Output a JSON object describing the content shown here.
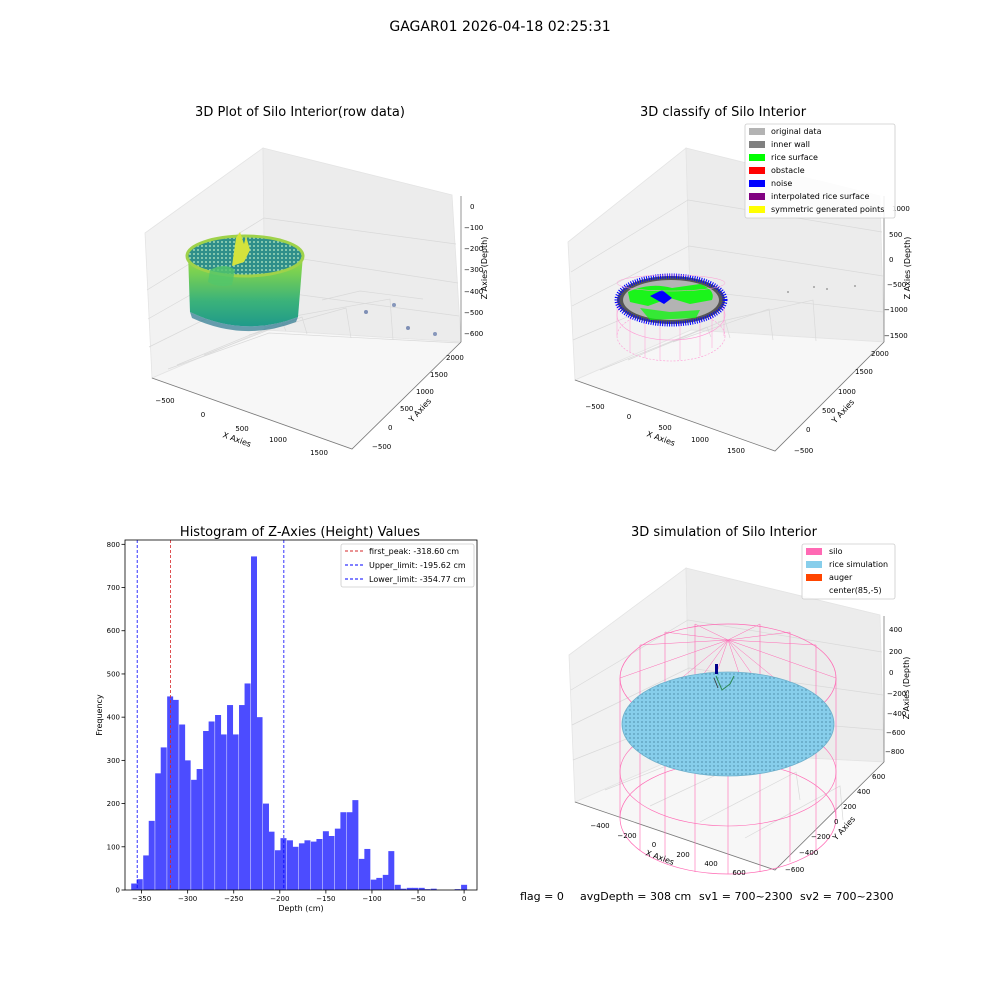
{
  "figure_title": "GAGAR01 2026-04-18 02:25:31",
  "status_line": {
    "flag": "flag = 0",
    "avg_depth": "avgDepth = 308 cm",
    "sv1": "sv1 = 700~2300",
    "sv2": "sv2 = 700~2300"
  },
  "chart_data": [
    {
      "id": "raw3d",
      "type": "scatter",
      "title": "3D Plot of Silo Interior(row data)",
      "xlabel": "X Axies",
      "ylabel": "Y Axies",
      "zlabel": "Z Axies (Depth)",
      "x_ticks": [
        "−500",
        "0",
        "500",
        "1000",
        "1500"
      ],
      "y_ticks": [
        "−500",
        "0",
        "500",
        "1000",
        "1500",
        "2000"
      ],
      "z_ticks": [
        "0",
        "−100",
        "−200",
        "−300",
        "−400",
        "−500",
        "−600"
      ],
      "colormap": [
        "#fde725",
        "#7ad151",
        "#22a884",
        "#2a788e",
        "#414487"
      ]
    },
    {
      "id": "classify3d",
      "type": "scatter",
      "title": "3D classify of Silo Interior",
      "xlabel": "X Axies",
      "ylabel": "Y Axies",
      "zlabel": "Z Axies (Depth)",
      "x_ticks": [
        "−500",
        "0",
        "500",
        "1000",
        "1500"
      ],
      "y_ticks": [
        "−500",
        "0",
        "500",
        "1000",
        "1500",
        "2000"
      ],
      "z_ticks": [
        "1000",
        "500",
        "0",
        "−500",
        "−1000",
        "−1500"
      ],
      "legend": [
        {
          "label": "original data",
          "color": "#b3b3b3"
        },
        {
          "label": "inner wall",
          "color": "#808080"
        },
        {
          "label": "rice surface",
          "color": "#00ff00"
        },
        {
          "label": "obstacle",
          "color": "#ff0000"
        },
        {
          "label": "noise",
          "color": "#0000ff"
        },
        {
          "label": "interpolated rice surface",
          "color": "#800080"
        },
        {
          "label": "symmetric generated points",
          "color": "#ffff00"
        }
      ],
      "legend_position": "top-right"
    },
    {
      "id": "histogram",
      "type": "bar",
      "title": "Histogram of Z-Axies (Height) Values",
      "xlabel": "Depth (cm)",
      "ylabel": "Frequency",
      "xlim": [
        -368,
        14
      ],
      "ylim": [
        0,
        810
      ],
      "x_ticks": [
        -350,
        -300,
        -250,
        -200,
        -150,
        -100,
        -50,
        0
      ],
      "x_tick_labels": [
        "−350",
        "−300",
        "−250",
        "−200",
        "−150",
        "−100",
        "−50",
        "0"
      ],
      "y_ticks": [
        0,
        100,
        200,
        300,
        400,
        500,
        600,
        700,
        800
      ],
      "bin_width": 6.5,
      "bar_color": "#4c4cff",
      "values": [
        {
          "x": -358,
          "y": 15
        },
        {
          "x": -352,
          "y": 25
        },
        {
          "x": -345,
          "y": 80
        },
        {
          "x": -339,
          "y": 160
        },
        {
          "x": -332,
          "y": 270
        },
        {
          "x": -326,
          "y": 330
        },
        {
          "x": -319,
          "y": 448
        },
        {
          "x": -313,
          "y": 440
        },
        {
          "x": -306,
          "y": 383
        },
        {
          "x": -300,
          "y": 300
        },
        {
          "x": -293,
          "y": 255
        },
        {
          "x": -287,
          "y": 280
        },
        {
          "x": -280,
          "y": 368
        },
        {
          "x": -274,
          "y": 390
        },
        {
          "x": -267,
          "y": 405
        },
        {
          "x": -261,
          "y": 360
        },
        {
          "x": -254,
          "y": 428
        },
        {
          "x": -248,
          "y": 360
        },
        {
          "x": -241,
          "y": 428
        },
        {
          "x": -235,
          "y": 478
        },
        {
          "x": -228,
          "y": 772
        },
        {
          "x": -222,
          "y": 400
        },
        {
          "x": -215,
          "y": 200
        },
        {
          "x": -209,
          "y": 135
        },
        {
          "x": -202,
          "y": 92
        },
        {
          "x": -196,
          "y": 120
        },
        {
          "x": -189,
          "y": 115
        },
        {
          "x": -183,
          "y": 100
        },
        {
          "x": -176,
          "y": 108
        },
        {
          "x": -170,
          "y": 115
        },
        {
          "x": -163,
          "y": 112
        },
        {
          "x": -157,
          "y": 118
        },
        {
          "x": -150,
          "y": 136
        },
        {
          "x": -144,
          "y": 125
        },
        {
          "x": -137,
          "y": 142
        },
        {
          "x": -131,
          "y": 180
        },
        {
          "x": -124,
          "y": 180
        },
        {
          "x": -118,
          "y": 208
        },
        {
          "x": -111,
          "y": 72
        },
        {
          "x": -105,
          "y": 95
        },
        {
          "x": -98,
          "y": 24
        },
        {
          "x": -92,
          "y": 28
        },
        {
          "x": -85,
          "y": 35
        },
        {
          "x": -79,
          "y": 90
        },
        {
          "x": -72,
          "y": 12
        },
        {
          "x": -66,
          "y": 3
        },
        {
          "x": -59,
          "y": 5
        },
        {
          "x": -53,
          "y": 5
        },
        {
          "x": -46,
          "y": 5
        },
        {
          "x": -40,
          "y": 2
        },
        {
          "x": -33,
          "y": 3
        },
        {
          "x": -7,
          "y": 2
        },
        {
          "x": 0,
          "y": 12
        }
      ],
      "reference_lines": [
        {
          "label": "first_peak: -318.60 cm",
          "x": -318.6,
          "color": "#d62728"
        },
        {
          "label": "Upper_limit: -195.62 cm",
          "x": -195.62,
          "color": "#0000ff"
        },
        {
          "label": "Lower_limit: -354.77 cm",
          "x": -354.77,
          "color": "#0000ff"
        }
      ],
      "legend_position": "top-right"
    },
    {
      "id": "sim3d",
      "type": "scatter",
      "title": "3D simulation of Silo Interior",
      "xlabel": "X Axies",
      "ylabel": "Y Axies",
      "zlabel": "Z Axies (Depth)",
      "x_ticks": [
        "−400",
        "−200",
        "0",
        "200",
        "400",
        "600"
      ],
      "y_ticks": [
        "−600",
        "−400",
        "−200",
        "0",
        "200",
        "400",
        "600"
      ],
      "z_ticks": [
        "400",
        "200",
        "0",
        "−200",
        "−400",
        "−600",
        "−800"
      ],
      "legend": [
        {
          "label": "silo",
          "color": "#ff69b4"
        },
        {
          "label": "rice simulation",
          "color": "#87ceeb"
        },
        {
          "label": "auger",
          "color": "#ff4500"
        },
        {
          "label": "center(85,-5)",
          "color": "#ffffff"
        }
      ],
      "legend_position": "top-right"
    }
  ]
}
